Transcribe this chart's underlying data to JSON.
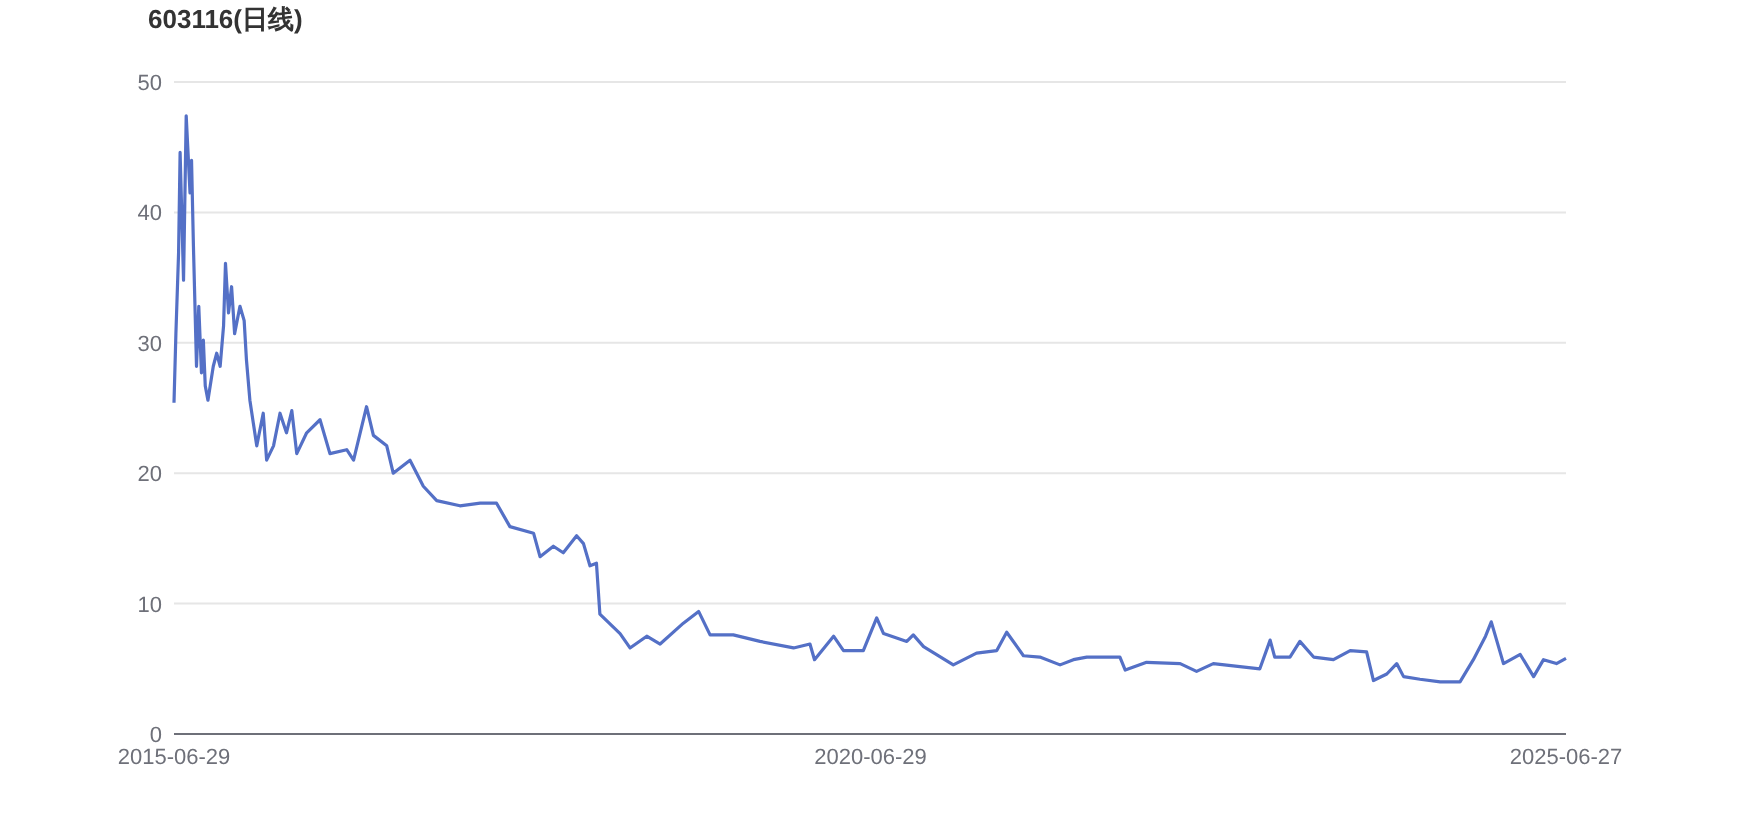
{
  "chart_data": {
    "type": "line",
    "title": "603116(日线)",
    "x": [
      "2015-06-29",
      "2015-07-04",
      "2015-07-11",
      "2015-07-15",
      "2015-07-24",
      "2015-07-31",
      "2015-08-10",
      "2015-08-14",
      "2015-08-19",
      "2015-08-27",
      "2015-09-02",
      "2015-09-09",
      "2015-09-14",
      "2015-09-19",
      "2015-09-26",
      "2015-10-10",
      "2015-10-19",
      "2015-10-28",
      "2015-11-06",
      "2015-11-11",
      "2015-11-19",
      "2015-11-27",
      "2015-12-05",
      "2015-12-19",
      "2015-12-30",
      "2016-01-05",
      "2016-01-14",
      "2016-02-01",
      "2016-02-18",
      "2016-02-27",
      "2016-03-16",
      "2016-04-02",
      "2016-04-19",
      "2016-05-03",
      "2016-05-16",
      "2016-06-11",
      "2016-07-16",
      "2016-08-11",
      "2016-09-24",
      "2016-10-12",
      "2016-11-15",
      "2016-12-03",
      "2017-01-07",
      "2017-01-24",
      "2017-03-09",
      "2017-04-13",
      "2017-05-18",
      "2017-07-18",
      "2017-09-09",
      "2017-10-22",
      "2017-11-26",
      "2018-01-27",
      "2018-02-13",
      "2018-03-20",
      "2018-04-15",
      "2018-05-20",
      "2018-06-07",
      "2018-06-24",
      "2018-07-11",
      "2018-07-20",
      "2018-09-11",
      "2018-10-07",
      "2018-11-20",
      "2018-12-25",
      "2019-02-24",
      "2019-04-05",
      "2019-05-05",
      "2019-07-05",
      "2019-09-13",
      "2019-12-10",
      "2020-01-22",
      "2020-02-03",
      "2020-03-24",
      "2020-04-19",
      "2020-06-10",
      "2020-07-15",
      "2020-08-02",
      "2020-10-02",
      "2020-10-19",
      "2020-11-15",
      "2021-02-01",
      "2021-04-03",
      "2021-05-26",
      "2021-06-21",
      "2021-08-04",
      "2021-09-16",
      "2021-11-08",
      "2021-12-13",
      "2022-01-17",
      "2022-04-14",
      "2022-04-28",
      "2022-06-23",
      "2022-09-19",
      "2022-11-01",
      "2022-12-15",
      "2023-04-16",
      "2023-05-13",
      "2023-05-25",
      "2023-07-04",
      "2023-07-30",
      "2023-09-04",
      "2023-10-26",
      "2023-12-09",
      "2024-01-21",
      "2024-02-08",
      "2024-03-14",
      "2024-04-09",
      "2024-04-27",
      "2024-06-09",
      "2024-08-01",
      "2024-09-22",
      "2024-10-27",
      "2024-11-28",
      "2024-12-13",
      "2025-01-14",
      "2025-02-27",
      "2025-04-03",
      "2025-04-29",
      "2025-06-02",
      "2025-06-27"
    ],
    "series": [
      {
        "color": "#5470c6",
        "values": [
          25.4,
          30.7,
          36.9,
          44.6,
          34.8,
          47.4,
          41.5,
          44,
          37.4,
          28.2,
          32.8,
          27.7,
          30.2,
          26.7,
          25.6,
          28.2,
          29.2,
          28.2,
          31.3,
          36.1,
          32.3,
          34.3,
          30.7,
          32.8,
          31.7,
          28.7,
          25.6,
          22.1,
          24.6,
          21.0,
          22.1,
          24.6,
          23.1,
          24.8,
          21.5,
          23.1,
          24.1,
          21.5,
          21.8,
          21.0,
          25.1,
          22.9,
          22.1,
          20.0,
          21.0,
          19.0,
          17.9,
          17.5,
          17.7,
          17.7,
          15.9,
          15.4,
          13.6,
          14.4,
          13.9,
          15.2,
          14.6,
          12.9,
          13.1,
          9.2,
          7.7,
          6.6,
          7.5,
          6.9,
          8.5,
          9.4,
          7.6,
          7.6,
          7.1,
          6.6,
          6.9,
          5.7,
          7.5,
          6.4,
          6.4,
          8.9,
          7.7,
          7.1,
          7.6,
          6.7,
          5.3,
          6.2,
          6.4,
          7.8,
          6.0,
          5.9,
          5.3,
          5.7,
          5.9,
          5.9,
          4.9,
          5.5,
          5.4,
          4.8,
          5.4,
          5.0,
          7.2,
          5.9,
          5.9,
          7.1,
          5.9,
          5.7,
          6.4,
          6.3,
          4.1,
          4.6,
          5.4,
          4.4,
          4.2,
          4.0,
          4.0,
          5.7,
          7.5,
          8.6,
          5.4,
          6.1,
          4.4,
          5.7,
          5.4,
          5.8
        ]
      }
    ],
    "xlim": [
      "2015-06-29",
      "2025-06-27"
    ],
    "xticks": [
      {
        "value": "2015-06-29",
        "label": "2015-06-29"
      },
      {
        "value": "2020-06-29",
        "label": "2020-06-29"
      },
      {
        "value": "2025-06-27",
        "label": "2025-06-27"
      }
    ],
    "ylim": [
      0,
      50
    ],
    "yticks": [
      0,
      10,
      20,
      30,
      40,
      50
    ],
    "grid": "y",
    "marker": "none",
    "line_style": "solid"
  }
}
